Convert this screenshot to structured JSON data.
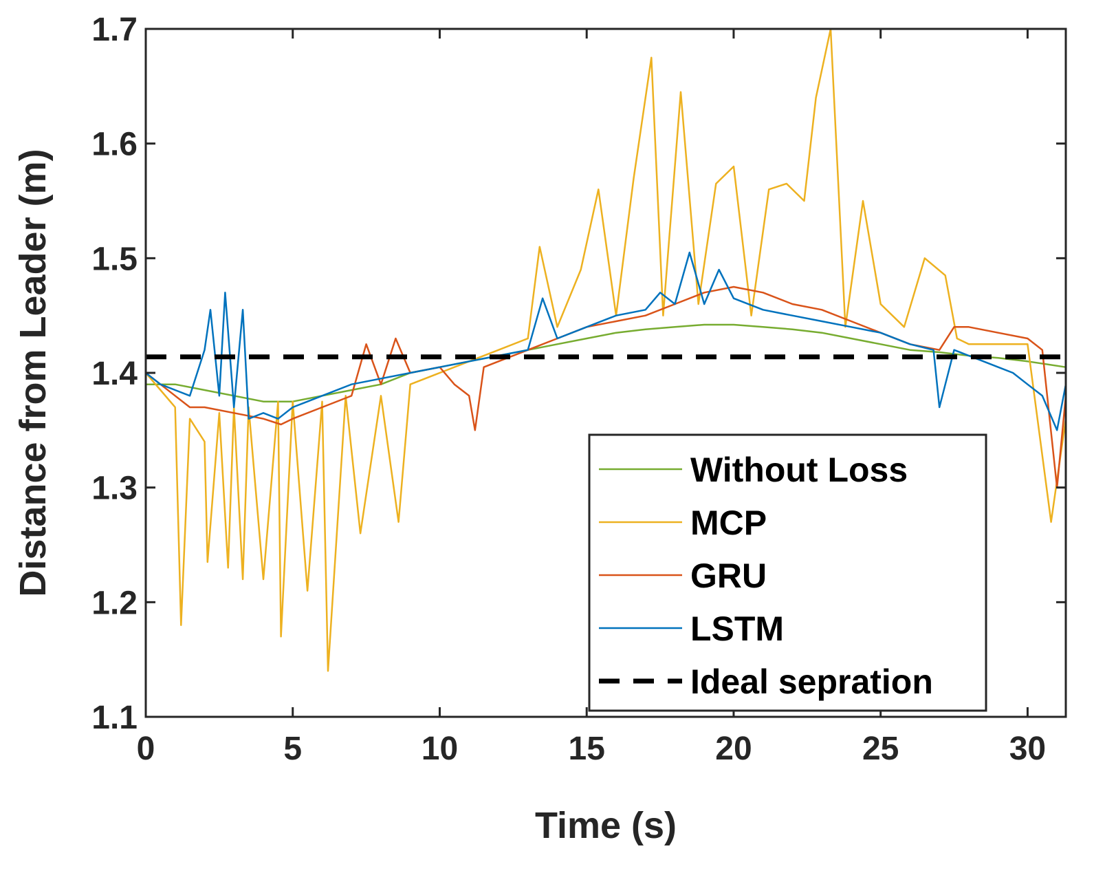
{
  "chart_data": {
    "type": "line",
    "title": "",
    "xlabel": "Time (s)",
    "ylabel": "Distance from Leader (m)",
    "xlim": [
      0,
      31.3
    ],
    "ylim": [
      1.1,
      1.7
    ],
    "xticks": [
      0,
      5,
      10,
      15,
      20,
      25,
      30
    ],
    "yticks": [
      1.1,
      1.2,
      1.3,
      1.4,
      1.5,
      1.6,
      1.7
    ],
    "legend_position": "bottom-right",
    "series": [
      {
        "name": "Without Loss",
        "color": "#77AC30",
        "style": "solid",
        "x": [
          0,
          1,
          2,
          3,
          4,
          5,
          6,
          7,
          8,
          9,
          10,
          11,
          12,
          13,
          14,
          15,
          16,
          17,
          18,
          19,
          20,
          21,
          22,
          23,
          24,
          25,
          26,
          27,
          28,
          29,
          30,
          31.3
        ],
        "values": [
          1.39,
          1.39,
          1.385,
          1.38,
          1.375,
          1.375,
          1.38,
          1.385,
          1.39,
          1.4,
          1.405,
          1.41,
          1.415,
          1.42,
          1.425,
          1.43,
          1.435,
          1.438,
          1.44,
          1.442,
          1.442,
          1.44,
          1.438,
          1.435,
          1.43,
          1.425,
          1.42,
          1.418,
          1.415,
          1.413,
          1.41,
          1.405
        ]
      },
      {
        "name": "MCP",
        "color": "#EDB120",
        "style": "solid",
        "x": [
          0,
          0.5,
          1.0,
          1.2,
          1.5,
          2.0,
          2.1,
          2.5,
          2.8,
          3.0,
          3.3,
          3.5,
          4.0,
          4.5,
          4.6,
          5.0,
          5.5,
          6.0,
          6.2,
          6.8,
          7.3,
          8.0,
          8.6,
          9.0,
          10.0,
          11.0,
          12.0,
          13.0,
          13.4,
          14.0,
          14.8,
          15.4,
          16.0,
          16.6,
          17.2,
          17.6,
          18.2,
          18.8,
          19.4,
          20.0,
          20.6,
          21.2,
          21.8,
          22.4,
          22.8,
          23.3,
          23.8,
          24.4,
          25.0,
          25.8,
          26.5,
          27.2,
          27.6,
          28.0,
          29.0,
          30.0,
          30.8,
          31.3
        ],
        "values": [
          1.4,
          1.385,
          1.37,
          1.18,
          1.36,
          1.34,
          1.235,
          1.365,
          1.23,
          1.37,
          1.22,
          1.37,
          1.22,
          1.375,
          1.17,
          1.375,
          1.21,
          1.375,
          1.14,
          1.38,
          1.26,
          1.38,
          1.27,
          1.39,
          1.4,
          1.41,
          1.42,
          1.43,
          1.51,
          1.44,
          1.49,
          1.56,
          1.45,
          1.57,
          1.675,
          1.45,
          1.645,
          1.46,
          1.565,
          1.58,
          1.45,
          1.56,
          1.565,
          1.55,
          1.64,
          1.7,
          1.44,
          1.55,
          1.46,
          1.44,
          1.5,
          1.485,
          1.43,
          1.425,
          1.425,
          1.425,
          1.27,
          1.36
        ]
      },
      {
        "name": "GRU",
        "color": "#D95319",
        "style": "solid",
        "x": [
          0,
          0.5,
          1.0,
          1.5,
          2.0,
          3.0,
          4.0,
          4.6,
          5.0,
          6.0,
          7.0,
          7.5,
          8.0,
          8.5,
          9.0,
          10.0,
          10.5,
          11.0,
          11.2,
          11.5,
          12.0,
          13.0,
          14.0,
          15.0,
          16.0,
          17.0,
          18.0,
          19.0,
          20.0,
          21.0,
          22.0,
          23.0,
          24.0,
          25.0,
          26.0,
          27.0,
          27.5,
          28.0,
          29.0,
          30.0,
          30.5,
          31.0,
          31.3
        ],
        "values": [
          1.4,
          1.39,
          1.38,
          1.37,
          1.37,
          1.365,
          1.36,
          1.355,
          1.36,
          1.37,
          1.38,
          1.425,
          1.39,
          1.43,
          1.4,
          1.405,
          1.39,
          1.38,
          1.35,
          1.405,
          1.41,
          1.42,
          1.43,
          1.44,
          1.445,
          1.45,
          1.46,
          1.47,
          1.475,
          1.47,
          1.46,
          1.455,
          1.445,
          1.435,
          1.425,
          1.42,
          1.44,
          1.44,
          1.435,
          1.43,
          1.42,
          1.3,
          1.38
        ]
      },
      {
        "name": "LSTM",
        "color": "#0072BD",
        "style": "solid",
        "x": [
          0,
          0.5,
          1.0,
          1.5,
          2.0,
          2.2,
          2.5,
          2.7,
          3.0,
          3.3,
          3.5,
          4.0,
          4.5,
          5.0,
          5.5,
          6.0,
          7.0,
          8.0,
          9.0,
          10.0,
          11.0,
          12.0,
          13.0,
          13.5,
          14.0,
          15.0,
          16.0,
          17.0,
          17.5,
          18.0,
          18.5,
          19.0,
          19.5,
          20.0,
          21.0,
          22.0,
          23.0,
          24.0,
          25.0,
          26.0,
          26.8,
          27.0,
          27.5,
          28.0,
          28.5,
          29.0,
          29.5,
          30.0,
          30.5,
          31.0,
          31.3
        ],
        "values": [
          1.4,
          1.39,
          1.385,
          1.38,
          1.42,
          1.455,
          1.38,
          1.47,
          1.37,
          1.455,
          1.36,
          1.365,
          1.36,
          1.37,
          1.375,
          1.38,
          1.39,
          1.395,
          1.4,
          1.405,
          1.41,
          1.415,
          1.42,
          1.465,
          1.43,
          1.44,
          1.45,
          1.455,
          1.47,
          1.46,
          1.505,
          1.46,
          1.49,
          1.465,
          1.455,
          1.45,
          1.445,
          1.44,
          1.435,
          1.425,
          1.42,
          1.37,
          1.42,
          1.415,
          1.41,
          1.405,
          1.4,
          1.39,
          1.38,
          1.35,
          1.39
        ]
      },
      {
        "name": "Ideal sepration",
        "color": "#000000",
        "style": "dashed",
        "x": [
          0,
          31.3
        ],
        "values": [
          1.414,
          1.414
        ]
      }
    ]
  }
}
